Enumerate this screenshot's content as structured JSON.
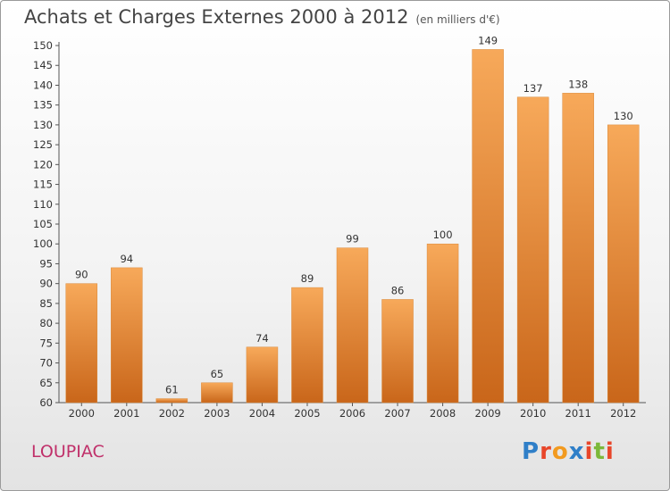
{
  "page": {
    "title": "Achats et Charges Externes 2000 à 2012",
    "subtitle": "(en milliers d'€)",
    "commune": "LOUPIAC",
    "logo": {
      "text": "Proxiti",
      "letters": [
        {
          "char": "P",
          "color": "#2f7fc8"
        },
        {
          "char": "r",
          "color": "#e8462a"
        },
        {
          "char": "o",
          "color": "#f29a1f"
        },
        {
          "char": "x",
          "color": "#2f7fc8"
        },
        {
          "char": "i",
          "color": "#e8462a"
        },
        {
          "char": "t",
          "color": "#7cb83a"
        },
        {
          "char": "i",
          "color": "#e8462a"
        }
      ]
    }
  },
  "chart_data": {
    "type": "bar",
    "title": "Achats et Charges Externes 2000 à 2012",
    "subtitle": "(en milliers d'€)",
    "xlabel": "",
    "ylabel": "",
    "categories": [
      "2000",
      "2001",
      "2002",
      "2003",
      "2004",
      "2005",
      "2006",
      "2007",
      "2008",
      "2009",
      "2010",
      "2011",
      "2012"
    ],
    "values": [
      90,
      94,
      61,
      65,
      74,
      89,
      99,
      86,
      100,
      149,
      137,
      138,
      130
    ],
    "ylim": [
      60,
      150
    ],
    "ytick_step": 5,
    "grid": false,
    "legend": "none",
    "bar_color_top": "#f7a95a",
    "bar_color_bottom": "#c9661a"
  }
}
